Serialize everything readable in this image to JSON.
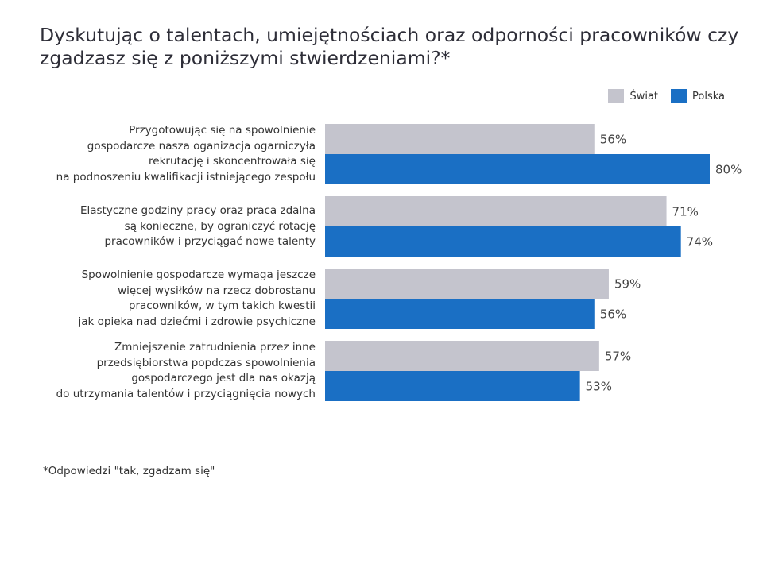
{
  "chart_data": {
    "type": "bar",
    "orientation": "horizontal",
    "title": "Dyskutując o talentach, umiejętnościach oraz odporności pracowników czy zgadzasz się z poniższymi stwierdzeniami?*",
    "categories": [
      "Przygotowując się na spowolnienie\ngospodarcze nasza oganizacja ogarniczyła\nrekrutację i skoncentrowała się\nna podnoszeniu kwalifikacji istniejącego zespołu",
      "Elastyczne godziny pracy oraz praca zdalna\nsą konieczne, by ograniczyć rotację\npracowników i przyciągać nowe talenty",
      "Spowolnienie gospodarcze wymaga jeszcze\nwięcej wysiłków na rzecz dobrostanu\npracowników, w tym takich kwestii\njak opieka nad dziećmi i zdrowie psychiczne",
      "Zmniejszenie zatrudnienia przez inne\nprzedsiębiorstwa popdczas spowolnienia\ngospodarczego jest dla nas okazją\ndo utrzymania talentów i przyciągnięcia nowych"
    ],
    "series": [
      {
        "name": "Świat",
        "color": "#c4c4cd",
        "values": [
          56,
          71,
          59,
          57
        ]
      },
      {
        "name": "Polska",
        "color": "#1a6fc4",
        "values": [
          80,
          74,
          56,
          53
        ]
      }
    ],
    "value_labels": {
      "Świat": [
        "56%",
        "71%",
        "59%",
        "57%"
      ],
      "Polska": [
        "80%",
        "74%",
        "56%",
        "53%"
      ]
    },
    "xlim": [
      0,
      80
    ],
    "unit": "%",
    "legend_position": "top-right",
    "grid": false,
    "footnote": "*Odpowiedzi \"tak, zgadzam się\""
  }
}
